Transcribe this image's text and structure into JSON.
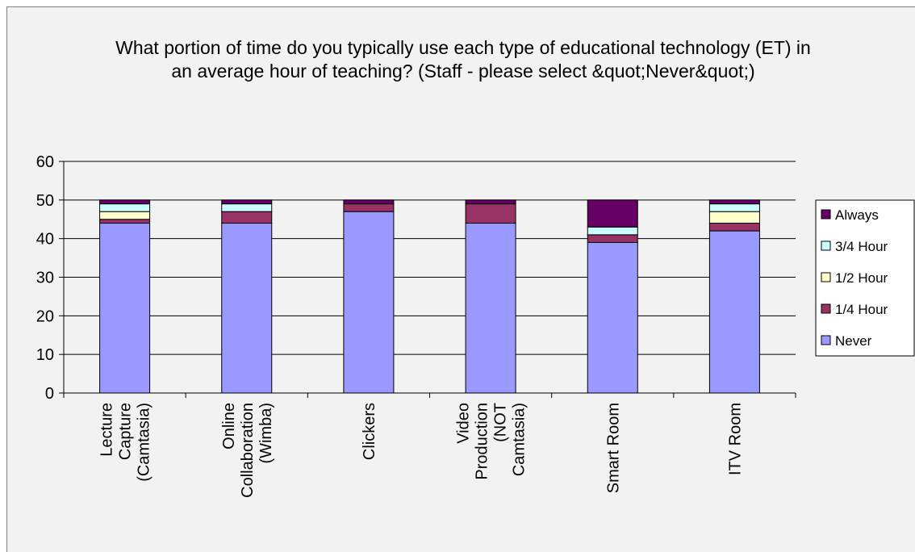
{
  "chart_data": {
    "type": "bar",
    "stacked": true,
    "title": "What portion of time do you typically use each type of educational technology (ET) in an average hour of teaching? (Staff - please select &quot;Never&quot;)",
    "categories": [
      [
        "Lecture",
        "Capture",
        "(Camtasia)"
      ],
      [
        "Online",
        "Collaboration",
        "(Wimba)"
      ],
      [
        "Clickers"
      ],
      [
        "Video",
        "Production",
        "(NOT",
        "Camtasia)"
      ],
      [
        "Smart Room"
      ],
      [
        "ITV Room"
      ]
    ],
    "series": [
      {
        "name": "Never",
        "color": "#9999ff",
        "values": [
          44,
          44,
          47,
          44,
          39,
          42
        ]
      },
      {
        "name": "1/4 Hour",
        "color": "#993366",
        "values": [
          1,
          3,
          2,
          5,
          2,
          2
        ]
      },
      {
        "name": "1/2 Hour",
        "color": "#ffffcc",
        "values": [
          2,
          0,
          0,
          0,
          0,
          3
        ]
      },
      {
        "name": "3/4 Hour",
        "color": "#ccffff",
        "values": [
          2,
          2,
          0,
          0,
          2,
          2
        ]
      },
      {
        "name": "Always",
        "color": "#660066",
        "values": [
          1,
          1,
          1,
          1,
          7,
          1
        ]
      }
    ],
    "ylim": [
      0,
      60
    ],
    "yticks": [
      0,
      10,
      20,
      30,
      40,
      50,
      60
    ],
    "gridlines": true,
    "legend_position": "right"
  }
}
